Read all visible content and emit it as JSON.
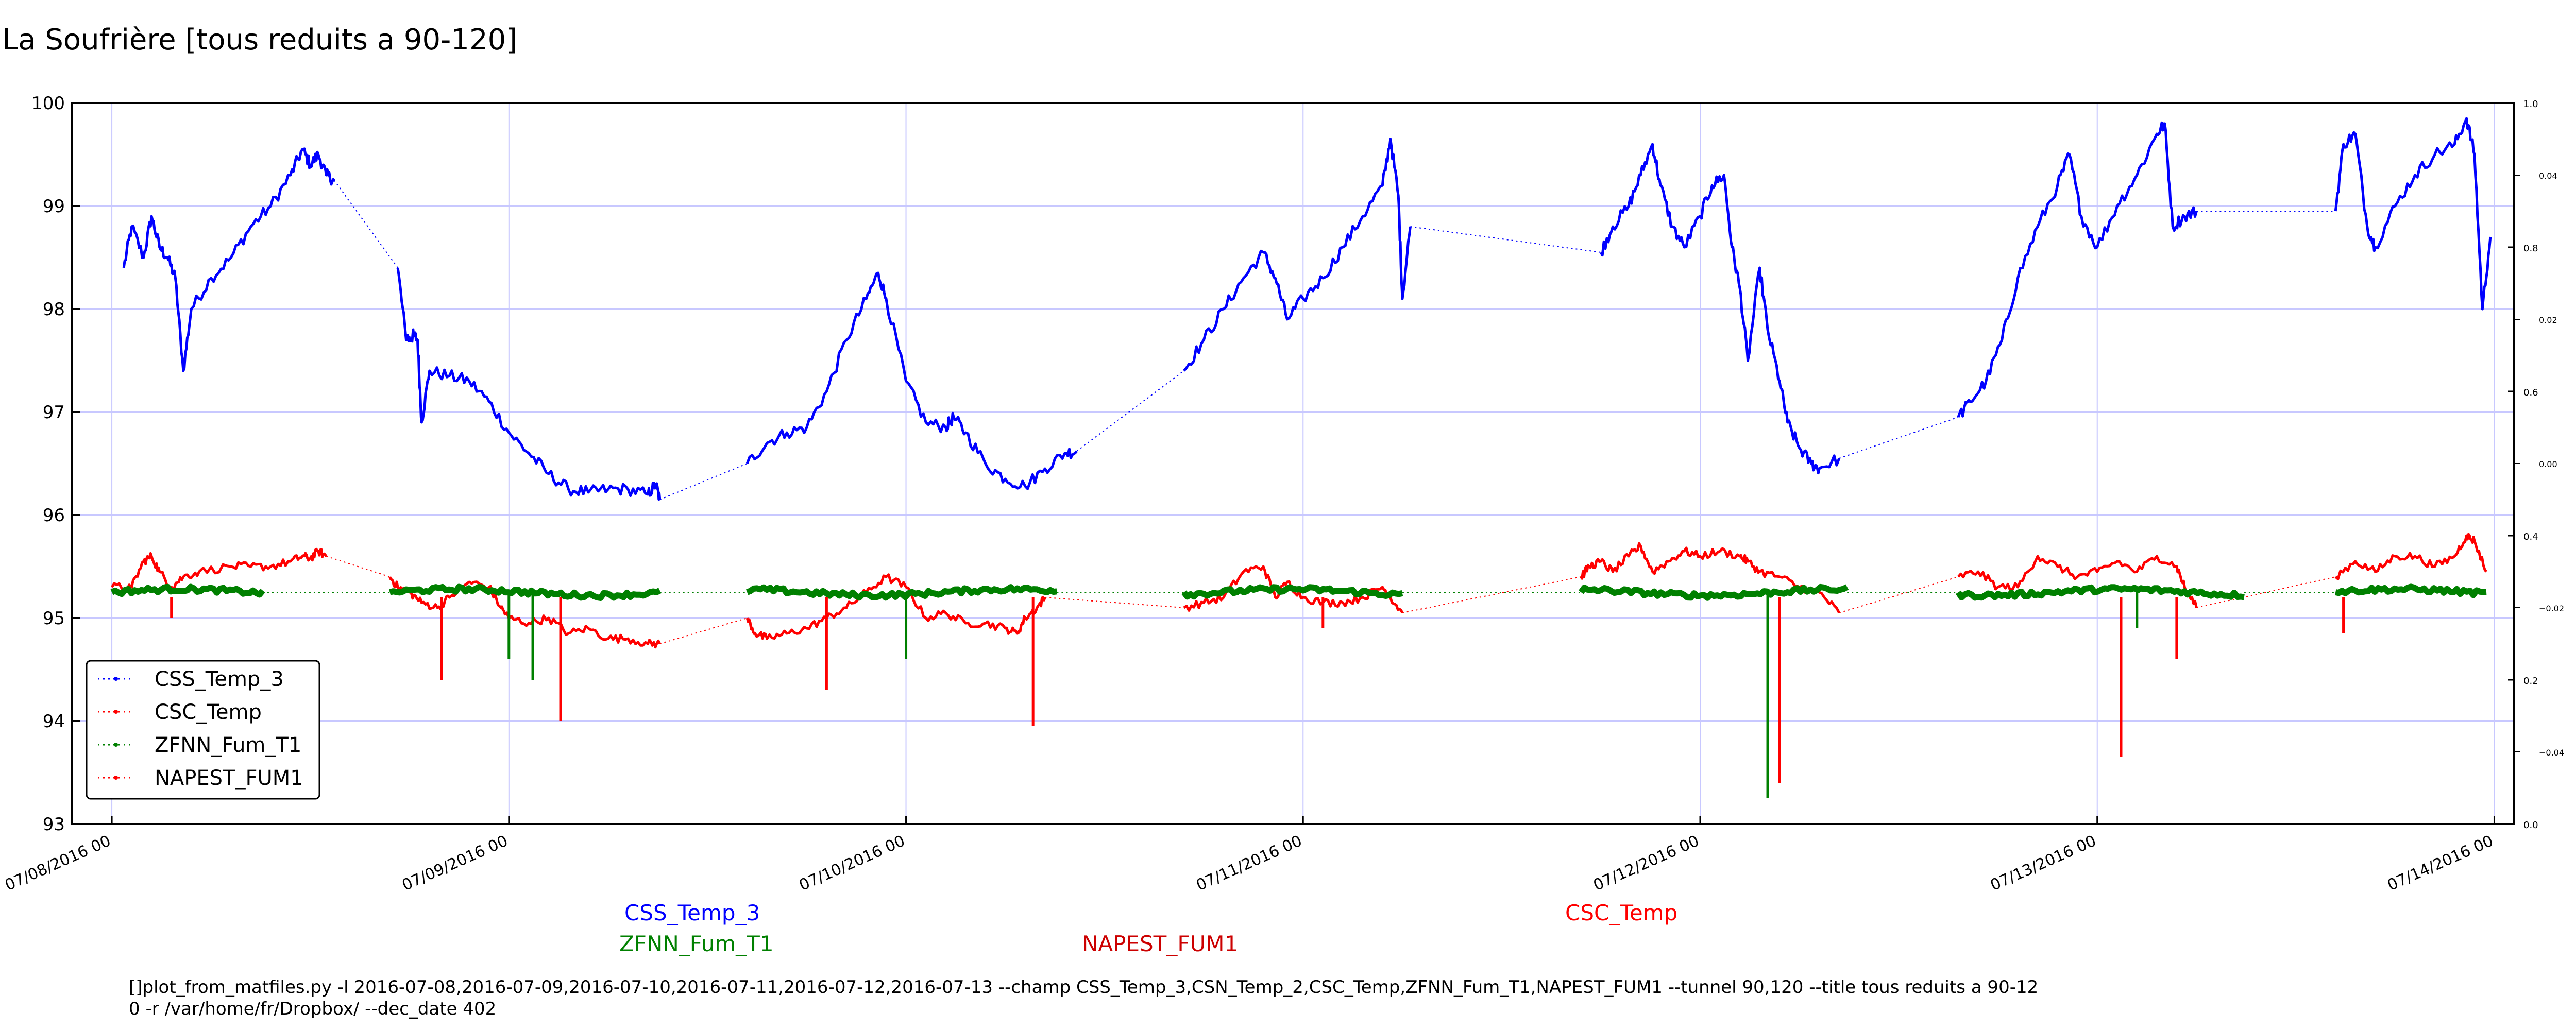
{
  "chart_data": {
    "type": "line",
    "title": "La Soufrière [tous reduits a 90-120]",
    "ylim": [
      93,
      100
    ],
    "y_ticks": [
      "93",
      "94",
      "95",
      "96",
      "97",
      "98",
      "99",
      "100"
    ],
    "right_ticks_outer": [
      "0.0",
      "0.2",
      "0.4",
      "0.6",
      "0.8",
      "1.0"
    ],
    "right_ticks_inner": [
      "−0.04",
      "−0.02",
      "0.00",
      "0.02",
      "0.04"
    ],
    "x_tick_labels": [
      "07/08/2016 00",
      "07/09/2016 00",
      "07/10/2016 00",
      "07/11/2016 00",
      "07/12/2016 00",
      "07/13/2016 00",
      "07/14/2016 00"
    ],
    "xlim_days": [
      -0.1,
      6.05
    ],
    "grid": true,
    "legend_position": "lower-left",
    "legend": [
      {
        "label": "CSS_Temp_3",
        "color": "#0000ff"
      },
      {
        "label": "CSC_Temp",
        "color": "#ff0000"
      },
      {
        "label": "ZFNN_Fum_T1",
        "color": "#008000"
      },
      {
        "label": "NAPEST_FUM1",
        "color": "#ff0000"
      }
    ],
    "series": [
      {
        "name": "CSS_Temp_3",
        "color": "#0000ff",
        "points": [
          [
            0.03,
            98.4
          ],
          [
            0.05,
            98.8
          ],
          [
            0.08,
            98.5
          ],
          [
            0.1,
            98.9
          ],
          [
            0.12,
            98.6
          ],
          [
            0.14,
            98.5
          ],
          [
            0.16,
            98.3
          ],
          [
            0.18,
            97.4
          ],
          [
            0.2,
            98.0
          ],
          [
            0.25,
            98.3
          ],
          [
            0.3,
            98.5
          ],
          [
            0.35,
            98.8
          ],
          [
            0.4,
            99.0
          ],
          [
            0.45,
            99.3
          ],
          [
            0.48,
            99.55
          ],
          [
            0.5,
            99.4
          ],
          [
            0.52,
            99.5
          ],
          [
            0.54,
            99.3
          ],
          [
            0.56,
            99.25
          ],
          [
            0.72,
            98.4
          ],
          [
            0.74,
            97.75
          ],
          [
            0.75,
            97.7
          ],
          [
            0.76,
            97.75
          ],
          [
            0.77,
            97.7
          ],
          [
            0.78,
            96.9
          ],
          [
            0.8,
            97.4
          ],
          [
            0.85,
            97.35
          ],
          [
            0.9,
            97.3
          ],
          [
            0.95,
            97.1
          ],
          [
            1.0,
            96.8
          ],
          [
            1.05,
            96.6
          ],
          [
            1.1,
            96.4
          ],
          [
            1.15,
            96.25
          ],
          [
            1.2,
            96.22
          ],
          [
            1.25,
            96.25
          ],
          [
            1.3,
            96.25
          ],
          [
            1.35,
            96.2
          ],
          [
            1.37,
            96.3
          ],
          [
            1.38,
            96.15
          ],
          [
            1.6,
            96.5
          ],
          [
            1.65,
            96.7
          ],
          [
            1.7,
            96.8
          ],
          [
            1.75,
            96.85
          ],
          [
            1.8,
            97.2
          ],
          [
            1.85,
            97.7
          ],
          [
            1.9,
            98.1
          ],
          [
            1.93,
            98.35
          ],
          [
            1.95,
            98.1
          ],
          [
            2.0,
            97.3
          ],
          [
            2.05,
            96.9
          ],
          [
            2.1,
            96.85
          ],
          [
            2.12,
            96.95
          ],
          [
            2.15,
            96.8
          ],
          [
            2.2,
            96.5
          ],
          [
            2.25,
            96.35
          ],
          [
            2.3,
            96.28
          ],
          [
            2.35,
            96.45
          ],
          [
            2.4,
            96.6
          ],
          [
            2.43,
            96.62
          ],
          [
            2.7,
            97.4
          ],
          [
            2.75,
            97.7
          ],
          [
            2.8,
            98.0
          ],
          [
            2.85,
            98.3
          ],
          [
            2.9,
            98.55
          ],
          [
            2.93,
            98.3
          ],
          [
            2.96,
            97.9
          ],
          [
            3.0,
            98.1
          ],
          [
            3.05,
            98.3
          ],
          [
            3.1,
            98.6
          ],
          [
            3.15,
            98.9
          ],
          [
            3.2,
            99.2
          ],
          [
            3.22,
            99.65
          ],
          [
            3.24,
            99.1
          ],
          [
            3.25,
            98.1
          ],
          [
            3.27,
            98.8
          ],
          [
            3.75,
            98.55
          ],
          [
            3.78,
            98.8
          ],
          [
            3.82,
            99.0
          ],
          [
            3.85,
            99.3
          ],
          [
            3.88,
            99.6
          ],
          [
            3.9,
            99.2
          ],
          [
            3.93,
            98.8
          ],
          [
            3.96,
            98.6
          ],
          [
            4.0,
            98.9
          ],
          [
            4.03,
            99.2
          ],
          [
            4.06,
            99.3
          ],
          [
            4.08,
            98.6
          ],
          [
            4.1,
            98.2
          ],
          [
            4.12,
            97.5
          ],
          [
            4.15,
            98.4
          ],
          [
            4.17,
            97.8
          ],
          [
            4.2,
            97.3
          ],
          [
            4.22,
            96.9
          ],
          [
            4.25,
            96.65
          ],
          [
            4.28,
            96.5
          ],
          [
            4.3,
            96.45
          ],
          [
            4.35,
            96.55
          ],
          [
            4.65,
            96.95
          ],
          [
            4.68,
            97.1
          ],
          [
            4.72,
            97.3
          ],
          [
            4.76,
            97.7
          ],
          [
            4.8,
            98.3
          ],
          [
            4.85,
            98.8
          ],
          [
            4.9,
            99.2
          ],
          [
            4.93,
            99.5
          ],
          [
            4.96,
            98.9
          ],
          [
            5.0,
            98.6
          ],
          [
            5.05,
            99.0
          ],
          [
            5.1,
            99.3
          ],
          [
            5.15,
            99.7
          ],
          [
            5.17,
            99.8
          ],
          [
            5.19,
            98.8
          ],
          [
            5.22,
            98.9
          ],
          [
            5.25,
            98.95
          ],
          [
            5.6,
            98.95
          ],
          [
            5.62,
            99.6
          ],
          [
            5.65,
            99.7
          ],
          [
            5.68,
            98.8
          ],
          [
            5.7,
            98.6
          ],
          [
            5.75,
            99.0
          ],
          [
            5.8,
            99.3
          ],
          [
            5.85,
            99.5
          ],
          [
            5.9,
            99.6
          ],
          [
            5.93,
            99.85
          ],
          [
            5.95,
            99.5
          ],
          [
            5.97,
            98.0
          ],
          [
            5.99,
            98.7
          ]
        ]
      },
      {
        "name": "CSC_Temp",
        "color": "#ff0000",
        "points": [
          [
            0.0,
            95.3
          ],
          [
            0.05,
            95.3
          ],
          [
            0.08,
            95.55
          ],
          [
            0.1,
            95.6
          ],
          [
            0.12,
            95.45
          ],
          [
            0.15,
            95.3
          ],
          [
            0.18,
            95.4
          ],
          [
            0.22,
            95.45
          ],
          [
            0.3,
            95.5
          ],
          [
            0.35,
            95.5
          ],
          [
            0.4,
            95.5
          ],
          [
            0.45,
            95.55
          ],
          [
            0.48,
            95.6
          ],
          [
            0.5,
            95.58
          ],
          [
            0.52,
            95.65
          ],
          [
            0.54,
            95.6
          ],
          [
            0.7,
            95.4
          ],
          [
            0.72,
            95.3
          ],
          [
            0.75,
            95.25
          ],
          [
            0.78,
            95.15
          ],
          [
            0.82,
            95.1
          ],
          [
            0.85,
            95.2
          ],
          [
            0.9,
            95.35
          ],
          [
            0.95,
            95.3
          ],
          [
            0.98,
            95.1
          ],
          [
            1.0,
            95.0
          ],
          [
            1.05,
            94.95
          ],
          [
            1.1,
            95.0
          ],
          [
            1.15,
            94.85
          ],
          [
            1.2,
            94.9
          ],
          [
            1.25,
            94.8
          ],
          [
            1.3,
            94.8
          ],
          [
            1.35,
            94.75
          ],
          [
            1.38,
            94.75
          ],
          [
            1.6,
            95.0
          ],
          [
            1.62,
            94.85
          ],
          [
            1.65,
            94.8
          ],
          [
            1.7,
            94.85
          ],
          [
            1.75,
            94.9
          ],
          [
            1.8,
            95.0
          ],
          [
            1.85,
            95.1
          ],
          [
            1.9,
            95.25
          ],
          [
            1.95,
            95.4
          ],
          [
            2.0,
            95.3
          ],
          [
            2.05,
            95.0
          ],
          [
            2.1,
            95.05
          ],
          [
            2.15,
            94.95
          ],
          [
            2.2,
            94.95
          ],
          [
            2.25,
            94.9
          ],
          [
            2.28,
            94.85
          ],
          [
            2.3,
            95.0
          ],
          [
            2.33,
            95.1
          ],
          [
            2.35,
            95.2
          ],
          [
            2.7,
            95.1
          ],
          [
            2.75,
            95.15
          ],
          [
            2.8,
            95.2
          ],
          [
            2.85,
            95.45
          ],
          [
            2.9,
            95.5
          ],
          [
            2.93,
            95.2
          ],
          [
            2.96,
            95.35
          ],
          [
            3.0,
            95.2
          ],
          [
            3.05,
            95.15
          ],
          [
            3.1,
            95.15
          ],
          [
            3.15,
            95.2
          ],
          [
            3.2,
            95.3
          ],
          [
            3.22,
            95.2
          ],
          [
            3.25,
            95.05
          ],
          [
            3.7,
            95.4
          ],
          [
            3.72,
            95.5
          ],
          [
            3.75,
            95.55
          ],
          [
            3.78,
            95.45
          ],
          [
            3.82,
            95.6
          ],
          [
            3.85,
            95.7
          ],
          [
            3.88,
            95.45
          ],
          [
            3.92,
            95.55
          ],
          [
            3.96,
            95.65
          ],
          [
            4.0,
            95.6
          ],
          [
            4.05,
            95.65
          ],
          [
            4.1,
            95.6
          ],
          [
            4.12,
            95.55
          ],
          [
            4.15,
            95.45
          ],
          [
            4.2,
            95.4
          ],
          [
            4.25,
            95.3
          ],
          [
            4.3,
            95.25
          ],
          [
            4.35,
            95.05
          ],
          [
            4.65,
            95.4
          ],
          [
            4.7,
            95.45
          ],
          [
            4.75,
            95.3
          ],
          [
            4.8,
            95.3
          ],
          [
            4.85,
            95.6
          ],
          [
            4.9,
            95.5
          ],
          [
            4.95,
            95.4
          ],
          [
            5.0,
            95.45
          ],
          [
            5.05,
            95.55
          ],
          [
            5.1,
            95.45
          ],
          [
            5.15,
            95.6
          ],
          [
            5.2,
            95.5
          ],
          [
            5.22,
            95.3
          ],
          [
            5.25,
            95.1
          ],
          [
            5.6,
            95.4
          ],
          [
            5.65,
            95.55
          ],
          [
            5.7,
            95.45
          ],
          [
            5.75,
            95.6
          ],
          [
            5.8,
            95.6
          ],
          [
            5.85,
            95.5
          ],
          [
            5.9,
            95.6
          ],
          [
            5.93,
            95.8
          ],
          [
            5.95,
            95.75
          ],
          [
            5.98,
            95.45
          ]
        ]
      },
      {
        "name": "ZFNN_Fum_T1",
        "color": "#008000",
        "segments": [
          [
            0.0,
            0.38
          ],
          [
            0.7,
            1.38
          ],
          [
            1.6,
            2.38
          ],
          [
            2.7,
            3.25
          ],
          [
            3.7,
            4.37
          ],
          [
            4.65,
            5.37
          ],
          [
            5.6,
            5.98
          ]
        ],
        "level": 95.25,
        "spikes": [
          [
            1.0,
            94.6
          ],
          [
            1.06,
            94.4
          ],
          [
            2.0,
            94.6
          ],
          [
            4.17,
            93.25
          ],
          [
            5.1,
            94.9
          ]
        ]
      },
      {
        "name": "NAPEST_FUM1",
        "color": "#ff0000",
        "spikes": [
          [
            0.15,
            95.0
          ],
          [
            0.83,
            94.4
          ],
          [
            1.13,
            94.0
          ],
          [
            1.8,
            94.3
          ],
          [
            2.32,
            93.95
          ],
          [
            3.05,
            94.9
          ],
          [
            4.2,
            93.4
          ],
          [
            5.06,
            93.65
          ],
          [
            5.2,
            94.6
          ],
          [
            5.62,
            94.85
          ]
        ]
      }
    ]
  },
  "captions": {
    "css": "CSS_Temp_3",
    "zfnn": "ZFNN_Fum_T1",
    "napest": "NAPEST_FUM1",
    "csc": "CSC_Temp"
  },
  "command_line": [
    "[]plot_from_matfiles.py -l 2016-07-08,2016-07-09,2016-07-10,2016-07-11,2016-07-12,2016-07-13 --champ CSS_Temp_3,CSN_Temp_2,CSC_Temp,ZFNN_Fum_T1,NAPEST_FUM1 --tunnel 90,120 --title tous reduits a 90-12",
    "0 -r /var/home/fr/Dropbox/ --dec_date 402"
  ]
}
